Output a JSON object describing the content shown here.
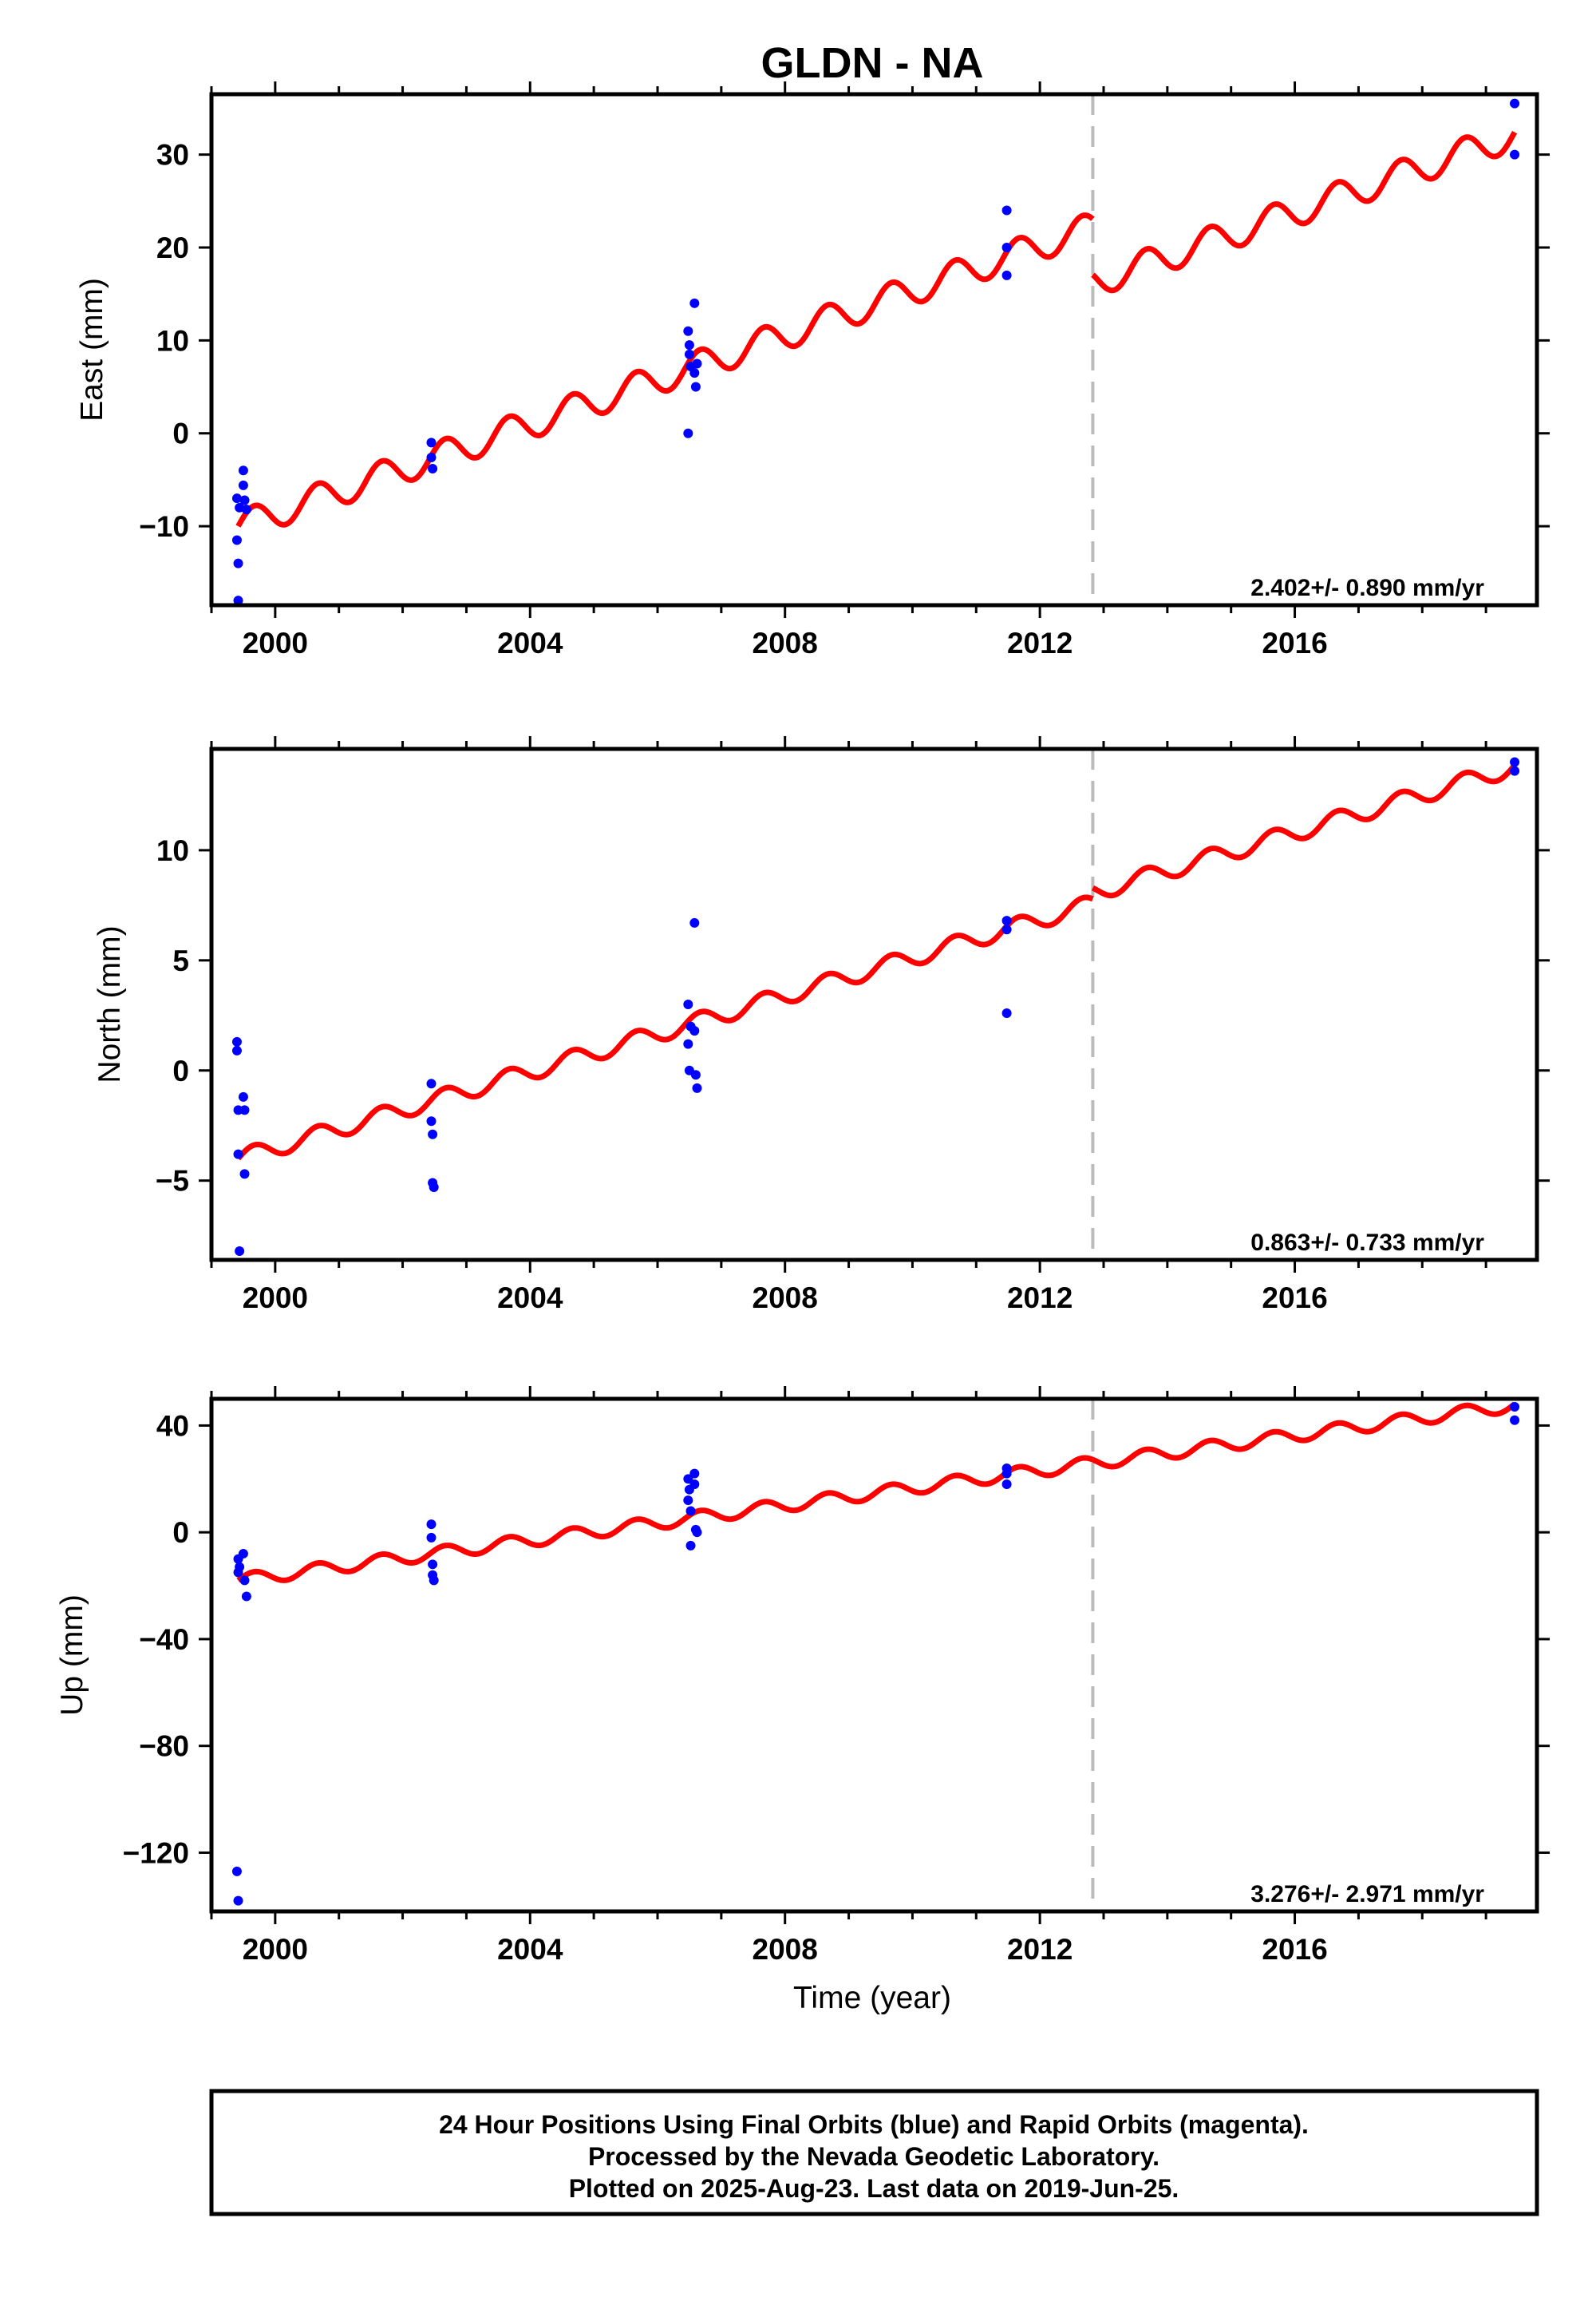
{
  "title": "GLDN - NA",
  "x_axis_label": "Time (year)",
  "footer": {
    "line1": "24 Hour Positions Using Final Orbits (blue) and Rapid Orbits (magenta).",
    "line2": "Processed by the Nevada Geodetic Laboratory.",
    "line3": "Plotted on 2025-Aug-23. Last data on 2019-Jun-25."
  },
  "colors": {
    "data_points": "#0000ff",
    "model_line": "#ff0000",
    "step_line": "#bbbbbb",
    "frame": "#000000"
  },
  "chart_data": [
    {
      "type": "scatter",
      "component": "East",
      "ylabel": "East (mm)",
      "xlim": [
        1999.0,
        2019.8
      ],
      "ylim": [
        -18.5,
        36.5
      ],
      "x_ticks": [
        2000,
        2004,
        2008,
        2012,
        2016
      ],
      "y_ticks": [
        -10,
        0,
        10,
        20,
        30
      ],
      "y_tick_labels": [
        "−10",
        "0",
        "10",
        "20",
        "30"
      ],
      "rate_label": "2.402+/- 0.890 mm/yr",
      "step_epoch": 2012.83,
      "model": {
        "base": -10.0,
        "rate": 2.402,
        "seasonal_amplitude": 1.6,
        "offset_at_step": -6.0
      },
      "points": [
        [
          1999.4,
          -7
        ],
        [
          1999.4,
          -11.5
        ],
        [
          1999.42,
          -14
        ],
        [
          1999.42,
          -18
        ],
        [
          1999.44,
          -8
        ],
        [
          1999.5,
          -4
        ],
        [
          1999.5,
          -5.6
        ],
        [
          1999.52,
          -7.2
        ],
        [
          1999.55,
          -8.2
        ],
        [
          2002.45,
          -1
        ],
        [
          2002.45,
          -2.6
        ],
        [
          2002.47,
          -3.8
        ],
        [
          2006.48,
          0
        ],
        [
          2006.48,
          11
        ],
        [
          2006.5,
          9.5
        ],
        [
          2006.5,
          8.5
        ],
        [
          2006.52,
          7.2
        ],
        [
          2006.58,
          14
        ],
        [
          2006.58,
          6.5
        ],
        [
          2006.6,
          5
        ],
        [
          2006.62,
          7.5
        ],
        [
          2011.48,
          24
        ],
        [
          2011.48,
          20
        ],
        [
          2011.48,
          17
        ],
        [
          2019.45,
          35.5
        ],
        [
          2019.45,
          30
        ]
      ]
    },
    {
      "type": "scatter",
      "component": "North",
      "ylabel": "North (mm)",
      "xlim": [
        1999.0,
        2019.8
      ],
      "ylim": [
        -8.6,
        14.6
      ],
      "x_ticks": [
        2000,
        2004,
        2008,
        2012,
        2016
      ],
      "y_ticks": [
        -5,
        0,
        5,
        10
      ],
      "y_tick_labels": [
        "−5",
        "0",
        "5",
        "10"
      ],
      "rate_label": "0.863+/- 0.733 mm/yr",
      "step_epoch": 2012.83,
      "model": {
        "base": -4.0,
        "rate": 0.863,
        "seasonal_amplitude": 0.4,
        "offset_at_step": 0.5
      },
      "points": [
        [
          1999.4,
          1.3
        ],
        [
          1999.4,
          0.9
        ],
        [
          1999.42,
          -1.8
        ],
        [
          1999.42,
          -3.8
        ],
        [
          1999.44,
          -8.2
        ],
        [
          1999.5,
          -1.2
        ],
        [
          1999.52,
          -1.8
        ],
        [
          1999.52,
          -4.7
        ],
        [
          2002.45,
          -0.6
        ],
        [
          2002.45,
          -2.3
        ],
        [
          2002.47,
          -2.9
        ],
        [
          2002.47,
          -5.1
        ],
        [
          2002.49,
          -5.3
        ],
        [
          2006.48,
          3.0
        ],
        [
          2006.48,
          1.2
        ],
        [
          2006.5,
          0.0
        ],
        [
          2006.52,
          2.0
        ],
        [
          2006.58,
          6.7
        ],
        [
          2006.58,
          1.8
        ],
        [
          2006.6,
          -0.2
        ],
        [
          2006.62,
          -0.8
        ],
        [
          2011.48,
          6.8
        ],
        [
          2011.48,
          6.4
        ],
        [
          2011.48,
          2.6
        ],
        [
          2019.45,
          14.0
        ],
        [
          2019.45,
          13.6
        ]
      ]
    },
    {
      "type": "scatter",
      "component": "Up",
      "ylabel": "Up (mm)",
      "xlim": [
        1999.0,
        2019.8
      ],
      "ylim": [
        -142,
        50
      ],
      "x_ticks": [
        2000,
        2004,
        2008,
        2012,
        2016
      ],
      "y_ticks": [
        -120,
        -80,
        -40,
        0,
        40
      ],
      "y_tick_labels": [
        "−120",
        "−80",
        "−40",
        "0",
        "40"
      ],
      "rate_label": "3.276+/- 2.971 mm/yr",
      "step_epoch": 2012.83,
      "model": {
        "base": -18.0,
        "rate": 3.276,
        "seasonal_amplitude": 2.4,
        "offset_at_step": 0.0
      },
      "points": [
        [
          1999.4,
          -127
        ],
        [
          1999.42,
          -138
        ],
        [
          1999.42,
          -10
        ],
        [
          1999.42,
          -15
        ],
        [
          1999.44,
          -13
        ],
        [
          1999.5,
          -8
        ],
        [
          1999.52,
          -18
        ],
        [
          1999.55,
          -24
        ],
        [
          2002.45,
          3
        ],
        [
          2002.45,
          -2
        ],
        [
          2002.47,
          -12
        ],
        [
          2002.47,
          -16
        ],
        [
          2002.49,
          -18
        ],
        [
          2006.48,
          20
        ],
        [
          2006.48,
          12
        ],
        [
          2006.5,
          16
        ],
        [
          2006.52,
          -5
        ],
        [
          2006.52,
          8
        ],
        [
          2006.58,
          22
        ],
        [
          2006.58,
          18
        ],
        [
          2006.6,
          1
        ],
        [
          2006.62,
          0
        ],
        [
          2011.48,
          24
        ],
        [
          2011.48,
          22
        ],
        [
          2011.48,
          18
        ],
        [
          2019.45,
          47
        ],
        [
          2019.45,
          42
        ]
      ]
    }
  ]
}
